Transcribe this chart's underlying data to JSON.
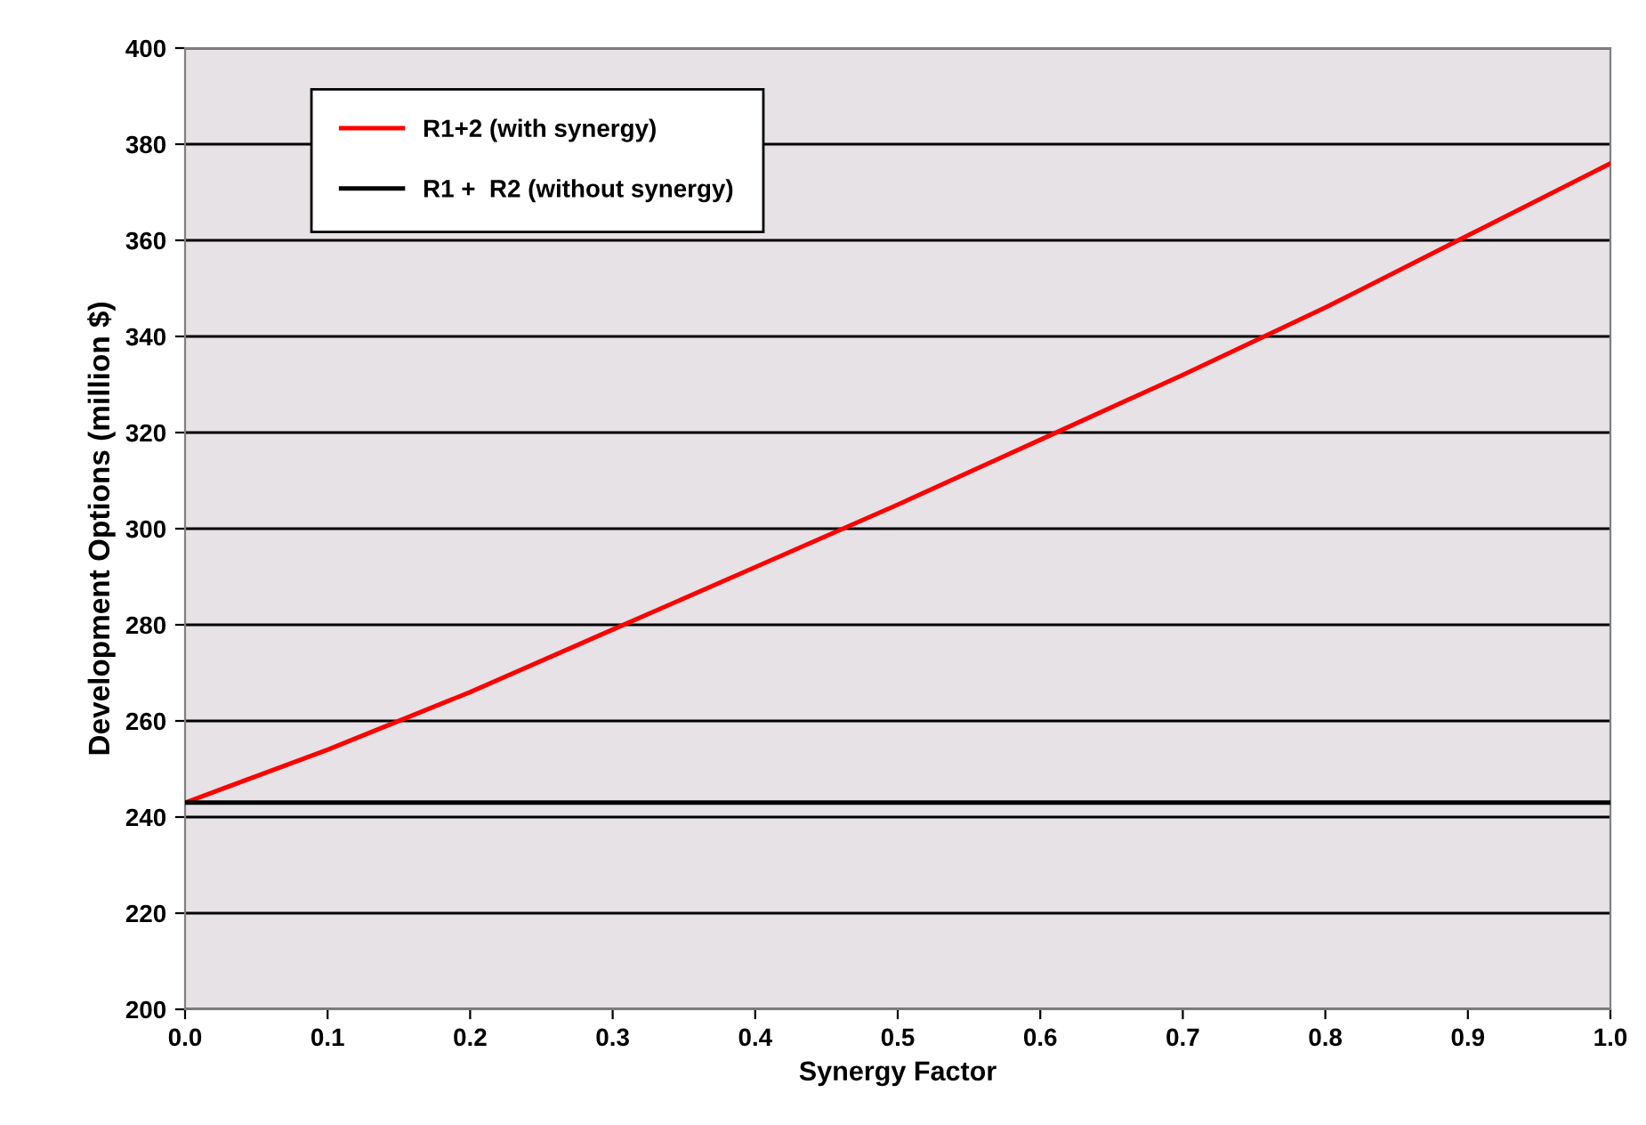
{
  "chart_data": {
    "type": "line",
    "xlabel": "Synergy Factor",
    "ylabel": "Development Options (million $)",
    "x": [
      0.0,
      0.1,
      0.2,
      0.3,
      0.4,
      0.5,
      0.6,
      0.7,
      0.8,
      0.9,
      1.0
    ],
    "series": [
      {
        "name": "R1+2 (with synergy)",
        "color": "#ff0000",
        "values": [
          243,
          254,
          266,
          279,
          292,
          305,
          318.5,
          332,
          346,
          361,
          376
        ]
      },
      {
        "name": "R1 +  R2 (without synergy)",
        "color": "#000000",
        "values": [
          243,
          243,
          243,
          243,
          243,
          243,
          243,
          243,
          243,
          243,
          243
        ]
      }
    ],
    "xlim": [
      0.0,
      1.0
    ],
    "ylim": [
      200,
      400
    ],
    "xticks": [
      {
        "value": 0.0,
        "label": "0.0"
      },
      {
        "value": 0.1,
        "label": "0.1"
      },
      {
        "value": 0.2,
        "label": "0.2"
      },
      {
        "value": 0.3,
        "label": "0.3"
      },
      {
        "value": 0.4,
        "label": "0.4"
      },
      {
        "value": 0.5,
        "label": "0.5"
      },
      {
        "value": 0.6,
        "label": "0.6"
      },
      {
        "value": 0.7,
        "label": "0.7"
      },
      {
        "value": 0.8,
        "label": "0.8"
      },
      {
        "value": 0.9,
        "label": "0.9"
      },
      {
        "value": 1.0,
        "label": "1.0"
      }
    ],
    "yticks": [
      200,
      220,
      240,
      260,
      280,
      300,
      320,
      340,
      360,
      380,
      400
    ],
    "grid": "y",
    "legend": "top left",
    "marker": "none",
    "line_style": "solid"
  }
}
